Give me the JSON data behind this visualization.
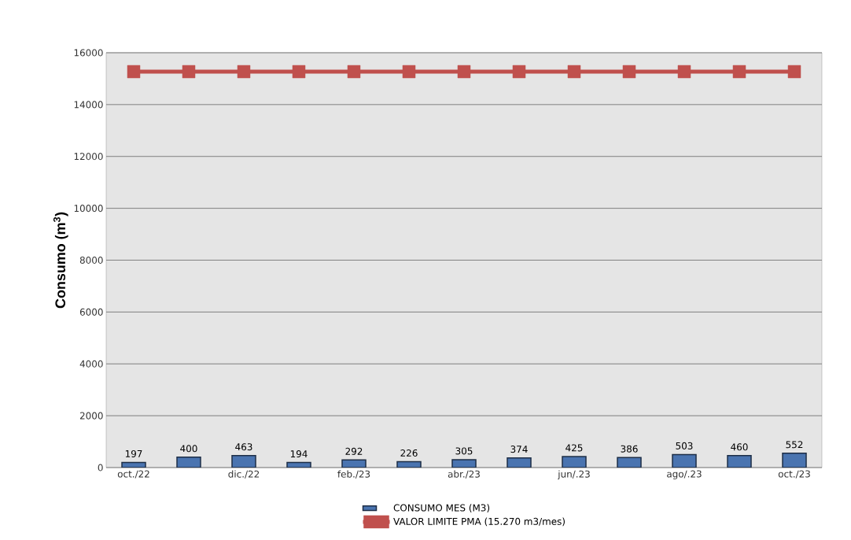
{
  "chart_data": {
    "type": "bar",
    "ylabel": "Consumo (m$^{3}$)",
    "categories": [
      "oct./22",
      null,
      "dic./22",
      null,
      "feb./23",
      null,
      "abr./23",
      null,
      "jun/.23",
      null,
      "ago/.23",
      null,
      "oct./23"
    ],
    "series": [
      {
        "name": "CONSUMO MES (M3)",
        "color": "#4a74b0",
        "values": [
          197,
          400,
          463,
          194,
          292,
          226,
          305,
          374,
          425,
          386,
          503,
          460,
          552
        ],
        "value_labels": [
          "197",
          "400",
          "463",
          "194",
          "292",
          "226",
          "305",
          "374",
          "425",
          "386",
          "503",
          "460",
          "552"
        ]
      },
      {
        "name": "VALOR LIMITE PMA (15.270 m3/mes)",
        "type": "line",
        "color": "#c0504d",
        "marker": "square",
        "values": [
          15270,
          15270,
          15270,
          15270,
          15270,
          15270,
          15270,
          15270,
          15270,
          15270,
          15270,
          15270,
          15270
        ]
      }
    ],
    "ylim": [
      0,
      16000
    ],
    "yticks": [
      0,
      2000,
      4000,
      6000,
      8000,
      10000,
      12000,
      14000,
      16000
    ],
    "grid": "y",
    "legend": "bottom"
  }
}
